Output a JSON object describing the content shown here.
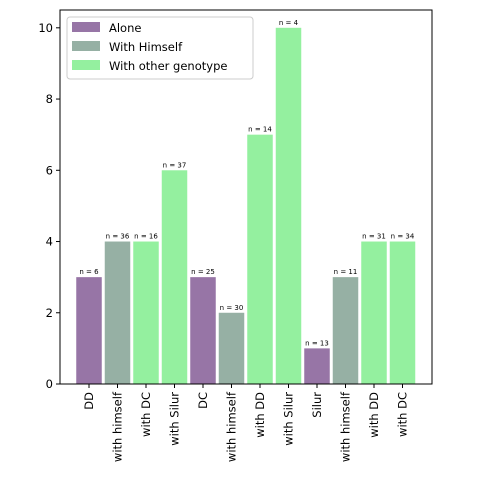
{
  "chart_data": {
    "type": "bar",
    "categories": [
      "DD",
      "with himself",
      "with DC",
      "with Silur",
      "DC",
      "with himself",
      "with DD",
      "with Silur",
      "Silur",
      "with himself",
      "with DD",
      "with DC"
    ],
    "values": [
      3,
      4,
      4,
      6,
      3,
      2,
      7,
      10,
      1,
      3,
      4,
      4
    ],
    "bar_labels": [
      "n = 6",
      "n = 36",
      "n = 16",
      "n = 37",
      "n = 25",
      "n = 30",
      "n = 14",
      "n = 4",
      "n = 13",
      "n = 11",
      "n = 31",
      "n = 34"
    ],
    "bar_series": [
      "Alone",
      "With Himself",
      "With other genotype",
      "With other genotype",
      "Alone",
      "With Himself",
      "With other genotype",
      "With other genotype",
      "Alone",
      "With Himself",
      "With other genotype",
      "With other genotype"
    ],
    "series": [
      {
        "name": "Alone",
        "color": "#9775a6"
      },
      {
        "name": "With Himself",
        "color": "#96b0a4"
      },
      {
        "name": "With other genotype",
        "color": "#94f09f"
      }
    ],
    "yticks": [
      0,
      2,
      4,
      6,
      8,
      10
    ],
    "ylim": [
      0,
      10.5
    ],
    "legend_position": "upper-left",
    "grid": false
  }
}
